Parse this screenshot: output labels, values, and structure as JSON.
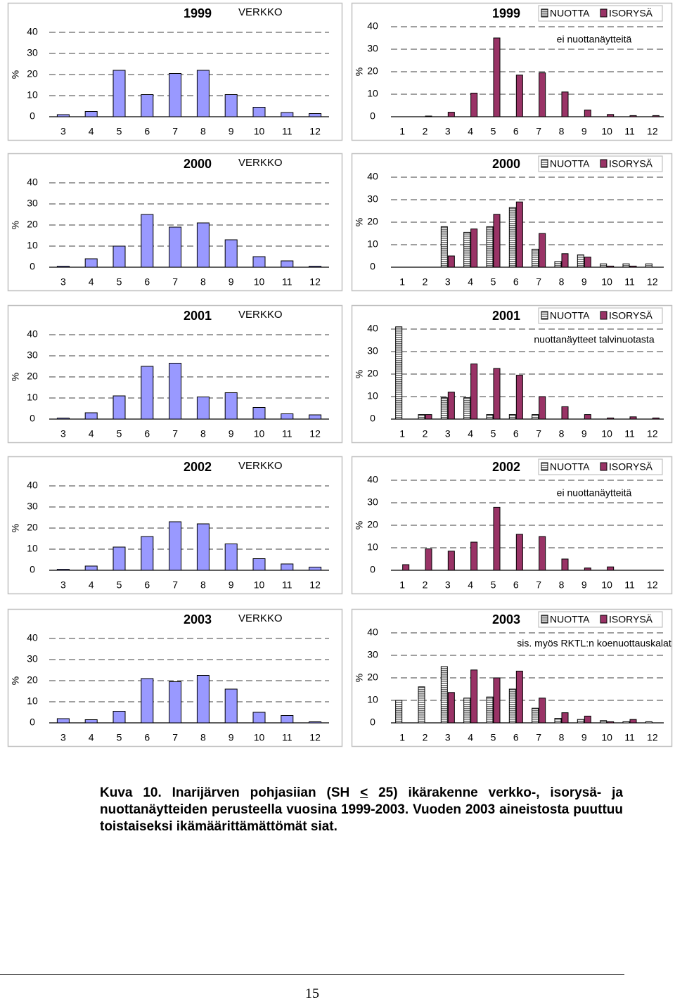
{
  "colors": {
    "verkko": "#9999ff",
    "nuotta": "#c0c0c0",
    "isorysa": "#993366",
    "gridline": "#000000",
    "frame": "#c0c0c0"
  },
  "chart_data": [
    {
      "id": "verkko-1999",
      "type": "bar",
      "year": "1999",
      "gear": "VERKKO",
      "ylabel": "%",
      "ylim": [
        0,
        40
      ],
      "yticks": [
        0,
        10,
        20,
        30,
        40
      ],
      "categories": [
        "3",
        "4",
        "5",
        "6",
        "7",
        "8",
        "9",
        "10",
        "11",
        "12"
      ],
      "series": [
        {
          "name": "VERKKO",
          "values": [
            1,
            2.5,
            22,
            10.5,
            20.5,
            22,
            10.5,
            4.5,
            2,
            1.5
          ]
        }
      ]
    },
    {
      "id": "nuotta-isorysa-1999",
      "type": "bar",
      "year": "1999",
      "ylabel": "%",
      "ylim": [
        0,
        40
      ],
      "yticks": [
        0,
        10,
        20,
        30,
        40
      ],
      "note": "ei nuottanäytteitä",
      "categories": [
        "1",
        "2",
        "3",
        "4",
        "5",
        "6",
        "7",
        "8",
        "9",
        "10",
        "11",
        "12"
      ],
      "series": [
        {
          "name": "NUOTTA",
          "values": [
            0,
            0,
            0,
            0,
            0,
            0,
            0,
            0,
            0,
            0,
            0,
            0
          ]
        },
        {
          "name": "ISORYSÄ",
          "values": [
            0,
            0.3,
            2,
            10.5,
            35,
            18.5,
            19.5,
            11,
            3,
            1,
            0.5,
            0.5
          ]
        }
      ]
    },
    {
      "id": "verkko-2000",
      "type": "bar",
      "year": "2000",
      "gear": "VERKKO",
      "ylabel": "%",
      "ylim": [
        0,
        40
      ],
      "yticks": [
        0,
        10,
        20,
        30,
        40
      ],
      "categories": [
        "3",
        "4",
        "5",
        "6",
        "7",
        "8",
        "9",
        "10",
        "11",
        "12"
      ],
      "series": [
        {
          "name": "VERKKO",
          "values": [
            0.5,
            4,
            10,
            25,
            19,
            21,
            13,
            5,
            3,
            0.5
          ]
        }
      ]
    },
    {
      "id": "nuotta-isorysa-2000",
      "type": "bar",
      "year": "2000",
      "ylabel": "%",
      "ylim": [
        0,
        40
      ],
      "yticks": [
        0,
        10,
        20,
        30,
        40
      ],
      "categories": [
        "1",
        "2",
        "3",
        "4",
        "5",
        "6",
        "7",
        "8",
        "9",
        "10",
        "11",
        "12"
      ],
      "series": [
        {
          "name": "NUOTTA",
          "values": [
            0,
            0,
            18,
            15.5,
            18,
            26.5,
            8,
            2.5,
            5.5,
            1.5,
            1.5,
            1.5
          ]
        },
        {
          "name": "ISORYSÄ",
          "values": [
            0,
            0,
            5,
            17,
            23.5,
            29,
            15,
            6,
            4.5,
            0.5,
            0.5,
            0
          ]
        }
      ]
    },
    {
      "id": "verkko-2001",
      "type": "bar",
      "year": "2001",
      "gear": "VERKKO",
      "ylabel": "%",
      "ylim": [
        0,
        40
      ],
      "yticks": [
        0,
        10,
        20,
        30,
        40
      ],
      "categories": [
        "3",
        "4",
        "5",
        "6",
        "7",
        "8",
        "9",
        "10",
        "11",
        "12"
      ],
      "series": [
        {
          "name": "VERKKO",
          "values": [
            0.5,
            3,
            11,
            25,
            26.5,
            10.5,
            12.5,
            5.5,
            2.5,
            2
          ]
        }
      ]
    },
    {
      "id": "nuotta-isorysa-2001",
      "type": "bar",
      "year": "2001",
      "ylabel": "%",
      "ylim": [
        0,
        40
      ],
      "yticks": [
        0,
        10,
        20,
        30,
        40
      ],
      "note": "nuottanäytteet talvinuotasta",
      "categories": [
        "1",
        "2",
        "3",
        "4",
        "5",
        "6",
        "7",
        "8",
        "9",
        "10",
        "11",
        "12"
      ],
      "series": [
        {
          "name": "NUOTTA",
          "values": [
            41,
            2,
            9.5,
            9.5,
            2,
            2,
            2,
            0,
            0,
            0,
            0,
            0
          ]
        },
        {
          "name": "ISORYSÄ",
          "values": [
            0,
            2,
            12,
            24.5,
            22.5,
            19.5,
            10,
            5.5,
            2,
            0.5,
            1,
            0.5
          ]
        }
      ]
    },
    {
      "id": "verkko-2002",
      "type": "bar",
      "year": "2002",
      "gear": "VERKKO",
      "ylabel": "%",
      "ylim": [
        0,
        40
      ],
      "yticks": [
        0,
        10,
        20,
        30,
        40
      ],
      "categories": [
        "3",
        "4",
        "5",
        "6",
        "7",
        "8",
        "9",
        "10",
        "11",
        "12"
      ],
      "series": [
        {
          "name": "VERKKO",
          "values": [
            0.5,
            2,
            11,
            16,
            23,
            22,
            12.5,
            5.5,
            3,
            1.5
          ]
        }
      ]
    },
    {
      "id": "nuotta-isorysa-2002",
      "type": "bar",
      "year": "2002",
      "ylabel": "%",
      "ylim": [
        0,
        40
      ],
      "yticks": [
        0,
        10,
        20,
        30,
        40
      ],
      "note": "ei nuottanäytteitä",
      "categories": [
        "1",
        "2",
        "3",
        "4",
        "5",
        "6",
        "7",
        "8",
        "9",
        "10",
        "11",
        "12"
      ],
      "series": [
        {
          "name": "NUOTTA",
          "values": [
            0,
            0,
            0,
            0,
            0,
            0,
            0,
            0,
            0,
            0,
            0,
            0
          ]
        },
        {
          "name": "ISORYSÄ",
          "values": [
            2.5,
            9.5,
            8.5,
            12.5,
            28,
            16,
            15,
            5,
            1,
            1.5,
            0,
            0
          ]
        }
      ]
    },
    {
      "id": "verkko-2003",
      "type": "bar",
      "year": "2003",
      "gear": "VERKKO",
      "ylabel": "%",
      "ylim": [
        0,
        40
      ],
      "yticks": [
        0,
        10,
        20,
        30,
        40
      ],
      "categories": [
        "3",
        "4",
        "5",
        "6",
        "7",
        "8",
        "9",
        "10",
        "11",
        "12"
      ],
      "series": [
        {
          "name": "VERKKO",
          "values": [
            2,
            1.5,
            5.5,
            21,
            19.5,
            22.5,
            16,
            5,
            3.5,
            0.5
          ]
        }
      ]
    },
    {
      "id": "nuotta-isorysa-2003",
      "type": "bar",
      "year": "2003",
      "ylabel": "%",
      "ylim": [
        0,
        40
      ],
      "yticks": [
        0,
        10,
        20,
        30,
        40
      ],
      "note": "sis. myös RKTL:n koenuottauskalat",
      "categories": [
        "1",
        "2",
        "3",
        "4",
        "5",
        "6",
        "7",
        "8",
        "9",
        "10",
        "11",
        "12"
      ],
      "series": [
        {
          "name": "NUOTTA",
          "values": [
            10,
            16,
            25,
            11,
            11.5,
            15,
            6.5,
            2,
            1.5,
            1,
            0.5,
            0.5
          ]
        },
        {
          "name": "ISORYSÄ",
          "values": [
            0,
            0,
            13.5,
            23.5,
            20,
            23,
            11,
            4.5,
            3,
            0.5,
            1.5,
            0
          ]
        }
      ]
    }
  ],
  "caption": {
    "lead": "Kuva 10.",
    "text_before_symbol": "Inarijärven pohjasiian (SH",
    "symbol": "<",
    "text_after_symbol": "25) ikärakenne verkko-, isorysä- ja nuottanäytteiden perusteella vuosina 1999-2003. Vuoden 2003 aineistosta puuttuu toistaiseksi ikämäärittämättömät siat."
  },
  "page_number": "15"
}
